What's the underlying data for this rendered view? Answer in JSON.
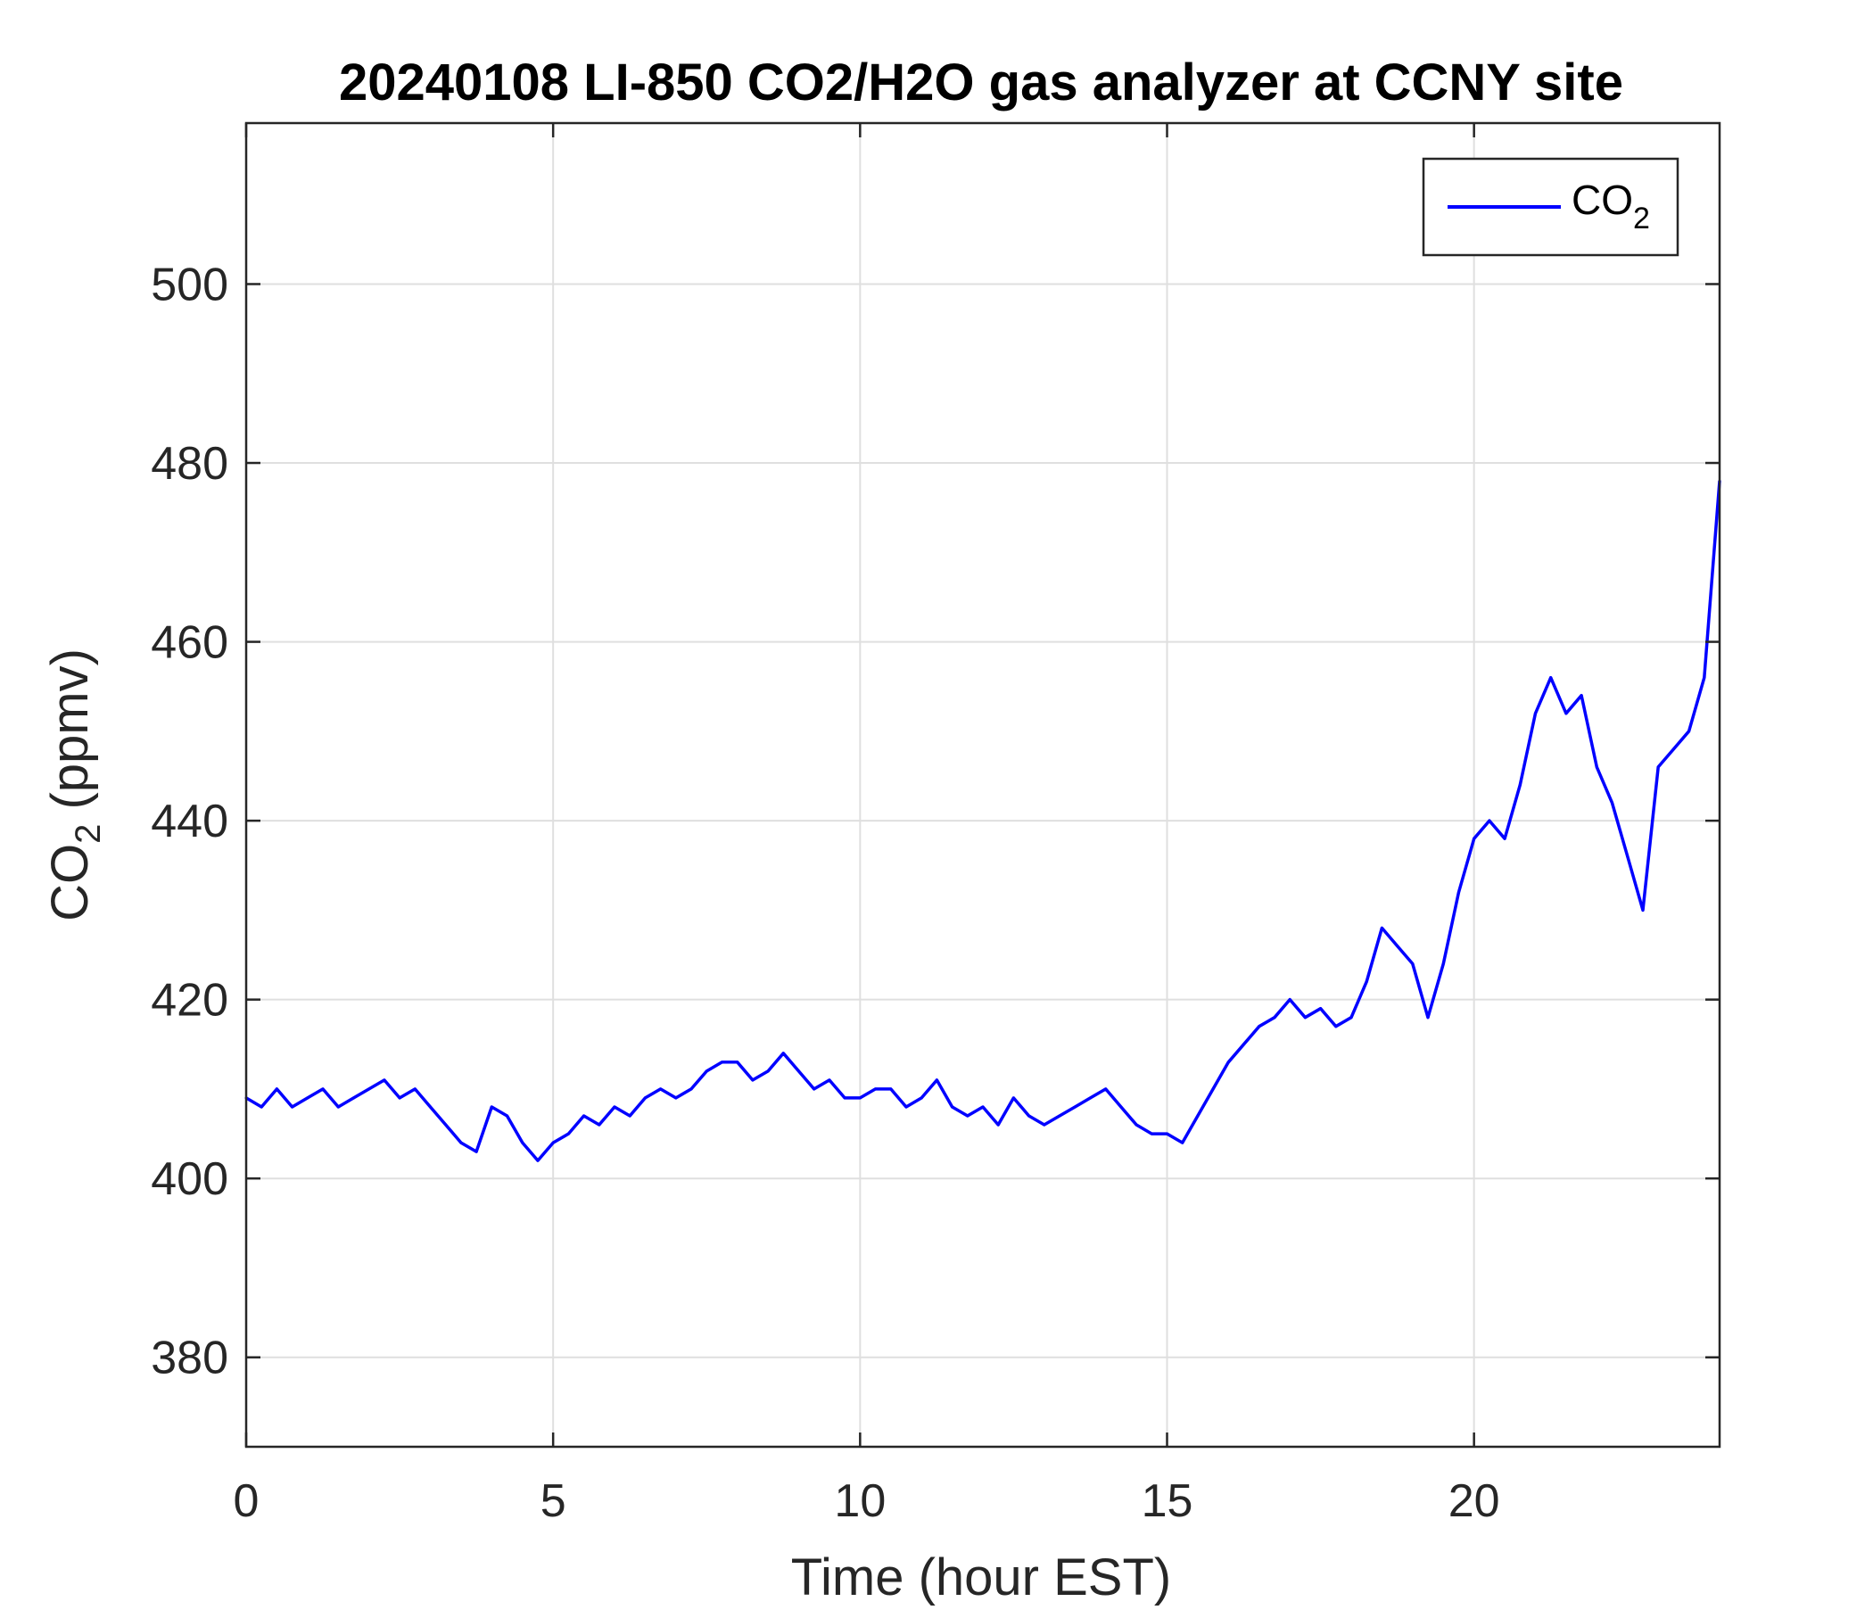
{
  "chart_data": {
    "type": "line",
    "title": "20240108 LI-850 CO2/H2O gas analyzer at CCNY site",
    "xlabel": "Time (hour EST)",
    "ylabel": {
      "main": "CO",
      "sub": "2",
      "suffix": " (ppmv)"
    },
    "xlim": [
      0,
      24
    ],
    "ylim": [
      370,
      518
    ],
    "xticks": [
      0,
      5,
      10,
      15,
      20
    ],
    "xtick_labels": [
      "0",
      "5",
      "10",
      "15",
      "20"
    ],
    "yticks": [
      380,
      400,
      420,
      440,
      460,
      480,
      500
    ],
    "ytick_labels": [
      "380",
      "400",
      "420",
      "440",
      "460",
      "480",
      "500"
    ],
    "grid": true,
    "legend": {
      "location": "top-right",
      "entries": [
        {
          "main": "CO",
          "sub": "2"
        }
      ]
    },
    "series": [
      {
        "name": "CO2",
        "color": "#0000ff",
        "x": [
          0,
          0.25,
          0.5,
          0.75,
          1.0,
          1.25,
          1.5,
          1.75,
          2.0,
          2.25,
          2.5,
          2.75,
          3.0,
          3.25,
          3.5,
          3.75,
          4.0,
          4.25,
          4.5,
          4.75,
          5.0,
          5.25,
          5.5,
          5.75,
          6.0,
          6.25,
          6.5,
          6.75,
          7.0,
          7.25,
          7.5,
          7.75,
          8.0,
          8.25,
          8.5,
          8.75,
          9.0,
          9.25,
          9.5,
          9.75,
          10.0,
          10.25,
          10.5,
          10.75,
          11.0,
          11.25,
          11.5,
          11.75,
          12.0,
          12.25,
          12.5,
          12.75,
          13.0,
          13.25,
          13.5,
          13.75,
          14.0,
          14.25,
          14.5,
          14.75,
          15.0,
          15.25,
          15.5,
          15.75,
          16.0,
          16.25,
          16.5,
          16.75,
          17.0,
          17.25,
          17.5,
          17.75,
          18.0,
          18.25,
          18.5,
          18.75,
          19.0,
          19.25,
          19.5,
          19.75,
          20.0,
          20.25,
          20.5,
          20.75,
          21.0,
          21.25,
          21.5,
          21.75,
          22.0,
          22.25,
          22.5,
          22.75,
          23.0,
          23.25,
          23.5,
          23.75,
          24.0
        ],
        "y": [
          409,
          408,
          410,
          408,
          409,
          410,
          408,
          409,
          410,
          411,
          409,
          410,
          408,
          406,
          404,
          403,
          408,
          407,
          404,
          402,
          404,
          405,
          407,
          406,
          408,
          407,
          409,
          410,
          409,
          410,
          412,
          413,
          413,
          411,
          412,
          414,
          412,
          410,
          411,
          409,
          409,
          410,
          410,
          408,
          409,
          411,
          408,
          407,
          408,
          406,
          409,
          407,
          406,
          407,
          408,
          409,
          410,
          408,
          406,
          405,
          405,
          404,
          407,
          410,
          413,
          415,
          417,
          418,
          420,
          418,
          419,
          417,
          418,
          422,
          428,
          426,
          424,
          418,
          424,
          432,
          438,
          440,
          438,
          444,
          452,
          456,
          452,
          454,
          446,
          442,
          436,
          430,
          446,
          448,
          450,
          456,
          478
        ]
      }
    ]
  }
}
